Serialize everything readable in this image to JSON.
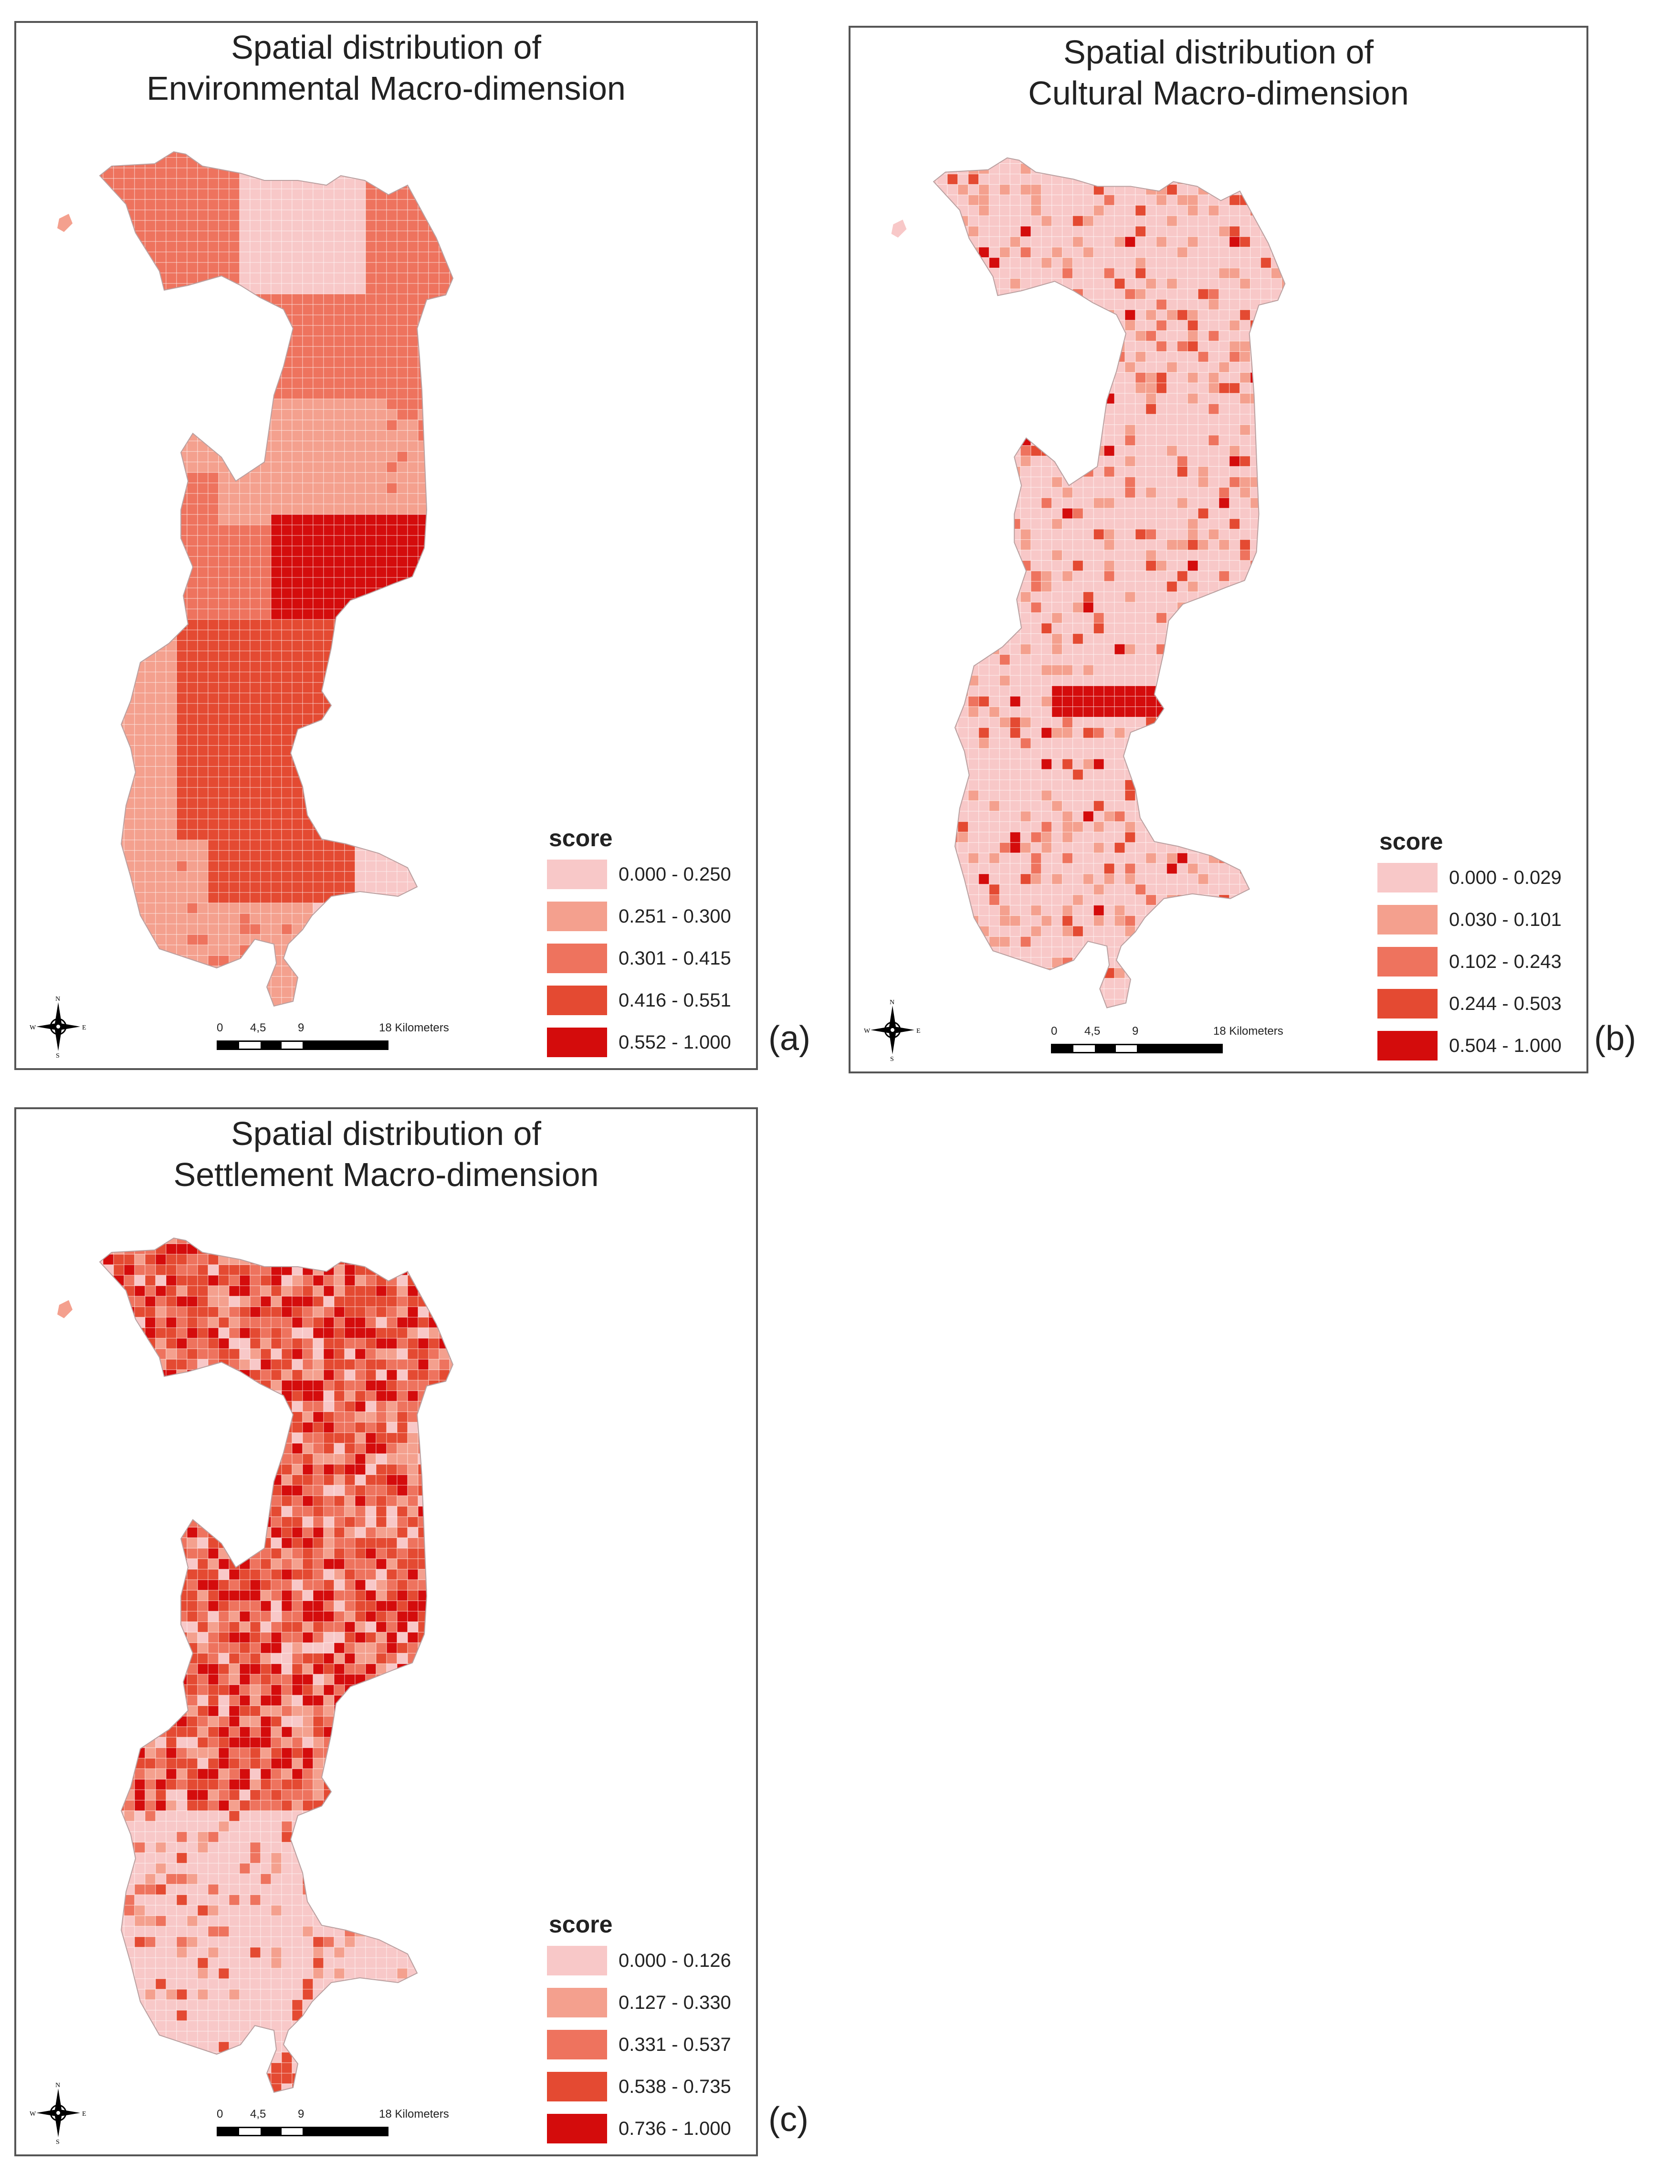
{
  "panels": [
    {
      "id": "a",
      "title_line1": "Spatial distribution of",
      "title_line2": "Environmental Macro-dimension",
      "letter": "(a)",
      "legend": {
        "heading": "score",
        "classes": [
          {
            "label": "0.000 - 0.250",
            "color": "#f8c8c8"
          },
          {
            "label": "0.251 - 0.300",
            "color": "#f4a08e"
          },
          {
            "label": "0.301 - 0.415",
            "color": "#ee735e"
          },
          {
            "label": "0.416 - 0.551",
            "color": "#e44a32"
          },
          {
            "label": "0.552 - 1.000",
            "color": "#d40c0c"
          }
        ]
      }
    },
    {
      "id": "b",
      "title_line1": "Spatial distribution of",
      "title_line2": "Cultural Macro-dimension",
      "letter": "(b)",
      "legend": {
        "heading": "score",
        "classes": [
          {
            "label": "0.000 - 0.029",
            "color": "#f8c8c8"
          },
          {
            "label": "0.030 - 0.101",
            "color": "#f4a08e"
          },
          {
            "label": "0.102 - 0.243",
            "color": "#ee735e"
          },
          {
            "label": "0.244 - 0.503",
            "color": "#e44a32"
          },
          {
            "label": "0.504 - 1.000",
            "color": "#d40c0c"
          }
        ]
      }
    },
    {
      "id": "c",
      "title_line1": "Spatial distribution of",
      "title_line2": "Settlement Macro-dimension",
      "letter": "(c)",
      "legend": {
        "heading": "score",
        "classes": [
          {
            "label": "0.000 - 0.126",
            "color": "#f8c8c8"
          },
          {
            "label": "0.127 - 0.330",
            "color": "#f4a08e"
          },
          {
            "label": "0.331 - 0.537",
            "color": "#ee735e"
          },
          {
            "label": "0.538 - 0.735",
            "color": "#e44a32"
          },
          {
            "label": "0.736 - 1.000",
            "color": "#d40c0c"
          }
        ]
      }
    }
  ],
  "scale": {
    "ticks": [
      "0",
      "4,5",
      "9",
      "18 Kilometers"
    ]
  },
  "compass": {
    "n": "N",
    "s": "S",
    "e": "E",
    "w": "W"
  }
}
